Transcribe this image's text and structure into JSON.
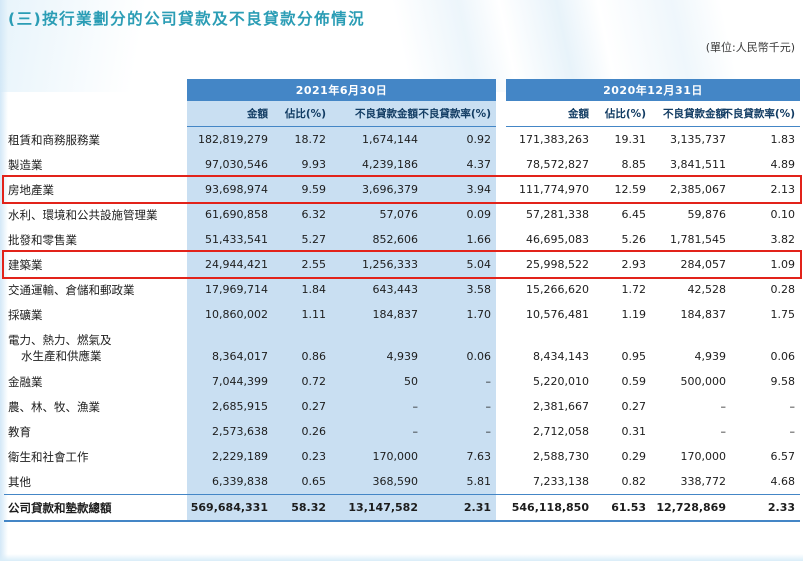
{
  "page": {
    "title": "(三)按行業劃分的公司貸款及不良貸款分佈情況",
    "unit_note": "(單位:人民幣千元)"
  },
  "table": {
    "col_groups": [
      {
        "label": "2021年6月30日"
      },
      {
        "label": "2020年12月31日"
      }
    ],
    "sub_headers": [
      "金額",
      "佔比(%)",
      "不良貸款金額",
      "不良貸款率(%)"
    ],
    "rows": [
      {
        "industry": "租賃和商務服務業",
        "highlight": false,
        "two_line": false,
        "values": [
          "182,819,279",
          "18.72",
          "1,674,144",
          "0.92",
          "171,383,263",
          "19.31",
          "3,135,737",
          "1.83"
        ]
      },
      {
        "industry": "製造業",
        "highlight": false,
        "two_line": false,
        "values": [
          "97,030,546",
          "9.93",
          "4,239,186",
          "4.37",
          "78,572,827",
          "8.85",
          "3,841,511",
          "4.89"
        ]
      },
      {
        "industry": "房地產業",
        "highlight": true,
        "two_line": false,
        "values": [
          "93,698,974",
          "9.59",
          "3,696,379",
          "3.94",
          "111,774,970",
          "12.59",
          "2,385,067",
          "2.13"
        ]
      },
      {
        "industry": "水利、環境和公共設施管理業",
        "highlight": false,
        "two_line": false,
        "values": [
          "61,690,858",
          "6.32",
          "57,076",
          "0.09",
          "57,281,338",
          "6.45",
          "59,876",
          "0.10"
        ]
      },
      {
        "industry": "批發和零售業",
        "highlight": false,
        "two_line": false,
        "values": [
          "51,433,541",
          "5.27",
          "852,606",
          "1.66",
          "46,695,083",
          "5.26",
          "1,781,545",
          "3.82"
        ]
      },
      {
        "industry": "建築業",
        "highlight": true,
        "two_line": false,
        "values": [
          "24,944,421",
          "2.55",
          "1,256,333",
          "5.04",
          "25,998,522",
          "2.93",
          "284,057",
          "1.09"
        ]
      },
      {
        "industry": "交通運輸、倉儲和郵政業",
        "highlight": false,
        "two_line": false,
        "values": [
          "17,969,714",
          "1.84",
          "643,443",
          "3.58",
          "15,266,620",
          "1.72",
          "42,528",
          "0.28"
        ]
      },
      {
        "industry": "採礦業",
        "highlight": false,
        "two_line": false,
        "values": [
          "10,860,002",
          "1.11",
          "184,837",
          "1.70",
          "10,576,481",
          "1.19",
          "184,837",
          "1.75"
        ]
      },
      {
        "industry": "電力、熱力、燃氣及\n水生產和供應業",
        "highlight": false,
        "two_line": true,
        "values": [
          "8,364,017",
          "0.86",
          "4,939",
          "0.06",
          "8,434,143",
          "0.95",
          "4,939",
          "0.06"
        ]
      },
      {
        "industry": "金融業",
        "highlight": false,
        "two_line": false,
        "values": [
          "7,044,399",
          "0.72",
          "50",
          "–",
          "5,220,010",
          "0.59",
          "500,000",
          "9.58"
        ]
      },
      {
        "industry": "農、林、牧、漁業",
        "highlight": false,
        "two_line": false,
        "values": [
          "2,685,915",
          "0.27",
          "–",
          "–",
          "2,381,667",
          "0.27",
          "–",
          "–"
        ]
      },
      {
        "industry": "教育",
        "highlight": false,
        "two_line": false,
        "values": [
          "2,573,638",
          "0.26",
          "–",
          "–",
          "2,712,058",
          "0.31",
          "–",
          "–"
        ]
      },
      {
        "industry": "衛生和社會工作",
        "highlight": false,
        "two_line": false,
        "values": [
          "2,229,189",
          "0.23",
          "170,000",
          "7.63",
          "2,588,730",
          "0.29",
          "170,000",
          "6.57"
        ]
      },
      {
        "industry": "其他",
        "highlight": false,
        "two_line": false,
        "values": [
          "6,339,838",
          "0.65",
          "368,590",
          "5.81",
          "7,233,138",
          "0.82",
          "338,772",
          "4.68"
        ]
      }
    ],
    "total_row": {
      "industry": "公司貸款和墊款總額",
      "values": [
        "569,684,331",
        "58.32",
        "13,147,582",
        "2.31",
        "546,118,850",
        "61.53",
        "12,728,869",
        "2.33"
      ]
    }
  },
  "colors": {
    "title_teal": "#2b9db5",
    "header_blue": "#4486c6",
    "column_highlight": "#c9dff2",
    "row_highlight_border": "#e2231a"
  }
}
